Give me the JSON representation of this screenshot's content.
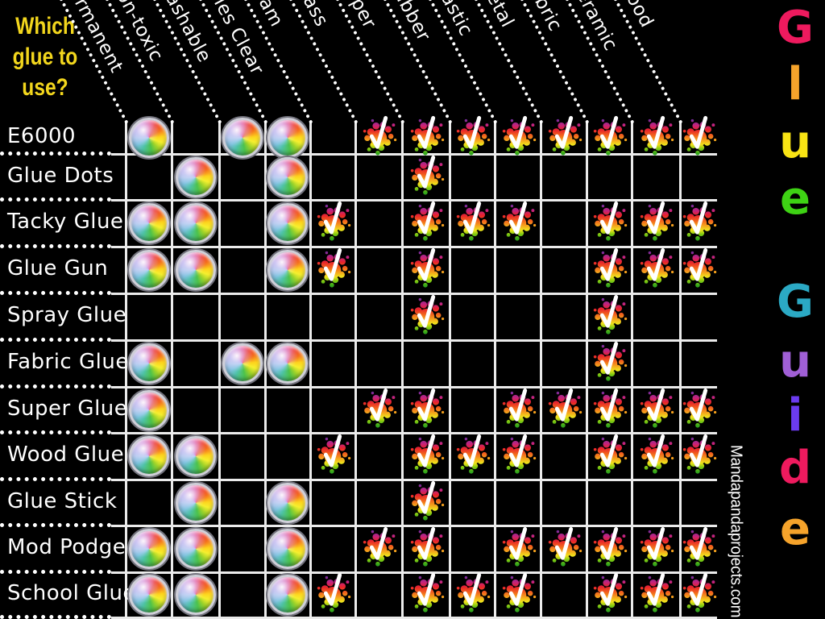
{
  "title": {
    "lines": [
      "Which",
      "glue to",
      "use?"
    ],
    "color": "#F2D61D"
  },
  "watermark": "Mandapandaprojects.com",
  "side_title": {
    "glue": [
      {
        "ch": "G",
        "color": "#EE1A5E"
      },
      {
        "ch": "l",
        "color": "#F5A32B"
      },
      {
        "ch": "u",
        "color": "#F9E414"
      },
      {
        "ch": "e",
        "color": "#3ED214"
      }
    ],
    "guide": [
      {
        "ch": "G",
        "color": "#2BA9C4"
      },
      {
        "ch": "u",
        "color": "#A05FD6"
      },
      {
        "ch": "i",
        "color": "#6B3BEF"
      },
      {
        "ch": "d",
        "color": "#EE1A5E"
      },
      {
        "ch": "e",
        "color": "#F5A32B"
      }
    ]
  },
  "markers": {
    "rainbow_dot": "glue has this property",
    "check_splat": "glue works on this material"
  },
  "colors": {
    "background": "#000000",
    "grid_line": "#EBEBEB",
    "label_text": "#FFFFFF",
    "title_yellow": "#F2D61D"
  },
  "chart_data": {
    "type": "table",
    "title": "Glue Guide",
    "columns": [
      "Permanent",
      "Non-toxic",
      "Washable",
      "Dries Clear",
      "Foam",
      "Glass",
      "Paper",
      "Rubber",
      "Plastic",
      "Metal",
      "Fabric",
      "Ceramic",
      "Wood"
    ],
    "property_columns": [
      "Permanent",
      "Non-toxic",
      "Washable",
      "Dries Clear",
      "Foam"
    ],
    "material_columns": [
      "Glass",
      "Paper",
      "Rubber",
      "Plastic",
      "Metal",
      "Fabric",
      "Ceramic",
      "Wood"
    ],
    "rows": [
      {
        "label": "E6000",
        "dots": [
          0,
          2,
          3
        ],
        "checks": [
          5,
          6,
          7,
          8,
          9,
          10,
          11,
          12
        ]
      },
      {
        "label": "Glue Dots",
        "dots": [
          1,
          3
        ],
        "checks": [
          6
        ]
      },
      {
        "label": "Tacky Glue",
        "dots": [
          0,
          1,
          3
        ],
        "checks": [
          4,
          6,
          7,
          8,
          10,
          11,
          12
        ]
      },
      {
        "label": "Glue Gun",
        "dots": [
          0,
          1,
          3
        ],
        "checks": [
          4,
          6,
          10,
          11,
          12
        ]
      },
      {
        "label": "Spray Glue",
        "dots": [],
        "checks": [
          6,
          10
        ]
      },
      {
        "label": "Fabric Glue",
        "dots": [
          0,
          2,
          3
        ],
        "checks": [
          10
        ]
      },
      {
        "label": "Super Glue",
        "dots": [
          0
        ],
        "checks": [
          5,
          6,
          8,
          9,
          10,
          11,
          12
        ]
      },
      {
        "label": "Wood Glue",
        "dots": [
          0,
          1
        ],
        "checks": [
          4,
          6,
          7,
          8,
          10,
          11,
          12
        ]
      },
      {
        "label": "Glue Stick",
        "dots": [
          1,
          3
        ],
        "checks": [
          6
        ]
      },
      {
        "label": "Mod Podge",
        "dots": [
          0,
          1,
          3
        ],
        "checks": [
          5,
          6,
          8,
          9,
          10,
          11,
          12
        ]
      },
      {
        "label": "School Glue",
        "dots": [
          0,
          1,
          3
        ],
        "checks": [
          4,
          6,
          7,
          8,
          10,
          11,
          12
        ]
      }
    ]
  }
}
